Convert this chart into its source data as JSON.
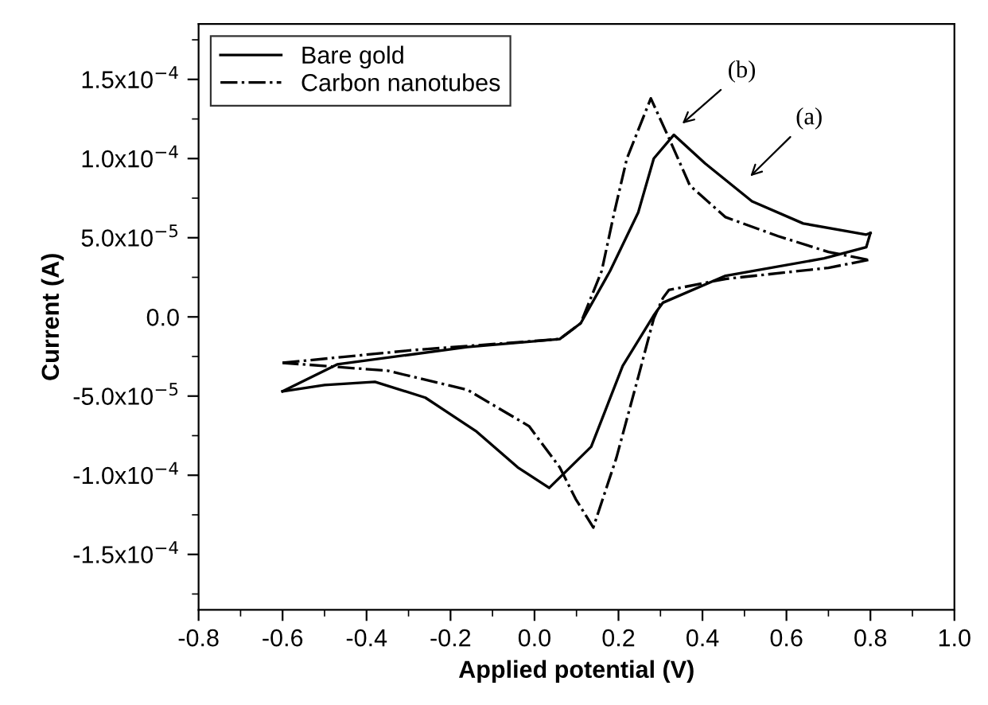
{
  "chart_data": {
    "type": "line",
    "xlabel": "Applied potential (V)",
    "ylabel": "Current (A)",
    "xlim": [
      -0.8,
      1.0
    ],
    "xticks": [
      -0.8,
      -0.6,
      -0.4,
      -0.2,
      {
        "value": 0,
        "label": "0.0"
      },
      0.2,
      0.4,
      0.6,
      0.8,
      {
        "value": 1,
        "label": "1.0"
      }
    ],
    "ylim": [
      -0.000185,
      0.000185
    ],
    "yticks": [
      {
        "value": -0.00015,
        "label": "-1.5x10$^{−4}$"
      },
      {
        "value": -0.0001,
        "label": "-1.0x10$^{−4}$"
      },
      {
        "value": -5e-05,
        "label": "-5.0x10$^{−5}$"
      },
      {
        "value": 0,
        "label": "0.0"
      },
      {
        "value": 5e-05,
        "label": "5.0x10$^{−5}$"
      },
      {
        "value": 0.0001,
        "label": "1.0x10$^{−4}$"
      },
      {
        "value": 0.00015,
        "label": "1.5x10$^{−4}$"
      }
    ],
    "grid": false,
    "legend": "top left",
    "marker": "none",
    "series": [
      {
        "name": "Bare gold",
        "color": "#000000",
        "line_style": "solid",
        "x": [
          -0.6,
          -0.47,
          -0.16,
          0.06,
          0.11,
          0.18,
          0.247,
          0.284,
          0.332,
          0.406,
          0.518,
          0.64,
          0.79,
          0.8
        ],
        "values": [
          -4.7e-05,
          -3e-05,
          -1.9e-05,
          -1.4e-05,
          -4e-06,
          2.9e-05,
          6.6e-05,
          0.0001,
          0.000115,
          9.7e-05,
          7.3e-05,
          5.9e-05,
          5.2e-05,
          5.3e-05
        ]
      },
      {
        "color": "#000000",
        "line_style": "solid",
        "x": [
          0.8,
          0.79,
          0.69,
          0.455,
          0.306,
          0.284,
          0.21,
          0.135,
          0.035,
          -0.04,
          -0.14,
          -0.26,
          -0.38,
          -0.5,
          -0.6
        ],
        "values": [
          5.3e-05,
          4.4e-05,
          3.7e-05,
          2.6e-05,
          9e-06,
          1e-06,
          -3.1e-05,
          -8.2e-05,
          -0.000108,
          -9.5e-05,
          -7.2e-05,
          -5.1e-05,
          -4.1e-05,
          -4.3e-05,
          -4.7e-05
        ]
      },
      {
        "name": "Carbon nanotubes",
        "color": "#000000",
        "line_style": "dashdot",
        "x": [
          -0.6,
          -0.29,
          0.06,
          0.11,
          0.16,
          0.19,
          0.22,
          0.277,
          0.32,
          0.37,
          0.455,
          0.58,
          0.7,
          0.795
        ],
        "values": [
          -2.9e-05,
          -2.1e-05,
          -1.4e-05,
          -4e-06,
          2.9e-05,
          6.6e-05,
          0.0001,
          0.000138,
          0.000113,
          8.3e-05,
          6.3e-05,
          5.1e-05,
          4.1e-05,
          3.6e-05
        ]
      },
      {
        "color": "#000000",
        "line_style": "dashdot",
        "x": [
          0.795,
          0.7,
          0.455,
          0.32,
          0.306,
          0.284,
          0.247,
          0.195,
          0.14,
          0.098,
          0.06,
          -0.013,
          -0.16,
          -0.35,
          -0.6
        ],
        "values": [
          3.6e-05,
          3.1e-05,
          2.4e-05,
          1.7e-05,
          1.2e-05,
          -1e-06,
          -3.8e-05,
          -8.9e-05,
          -0.000133,
          -0.000115,
          -9.5e-05,
          -6.9e-05,
          -4.6e-05,
          -3.4e-05,
          -2.9e-05
        ]
      }
    ],
    "annotations": [
      "(a)",
      "(b)"
    ]
  }
}
